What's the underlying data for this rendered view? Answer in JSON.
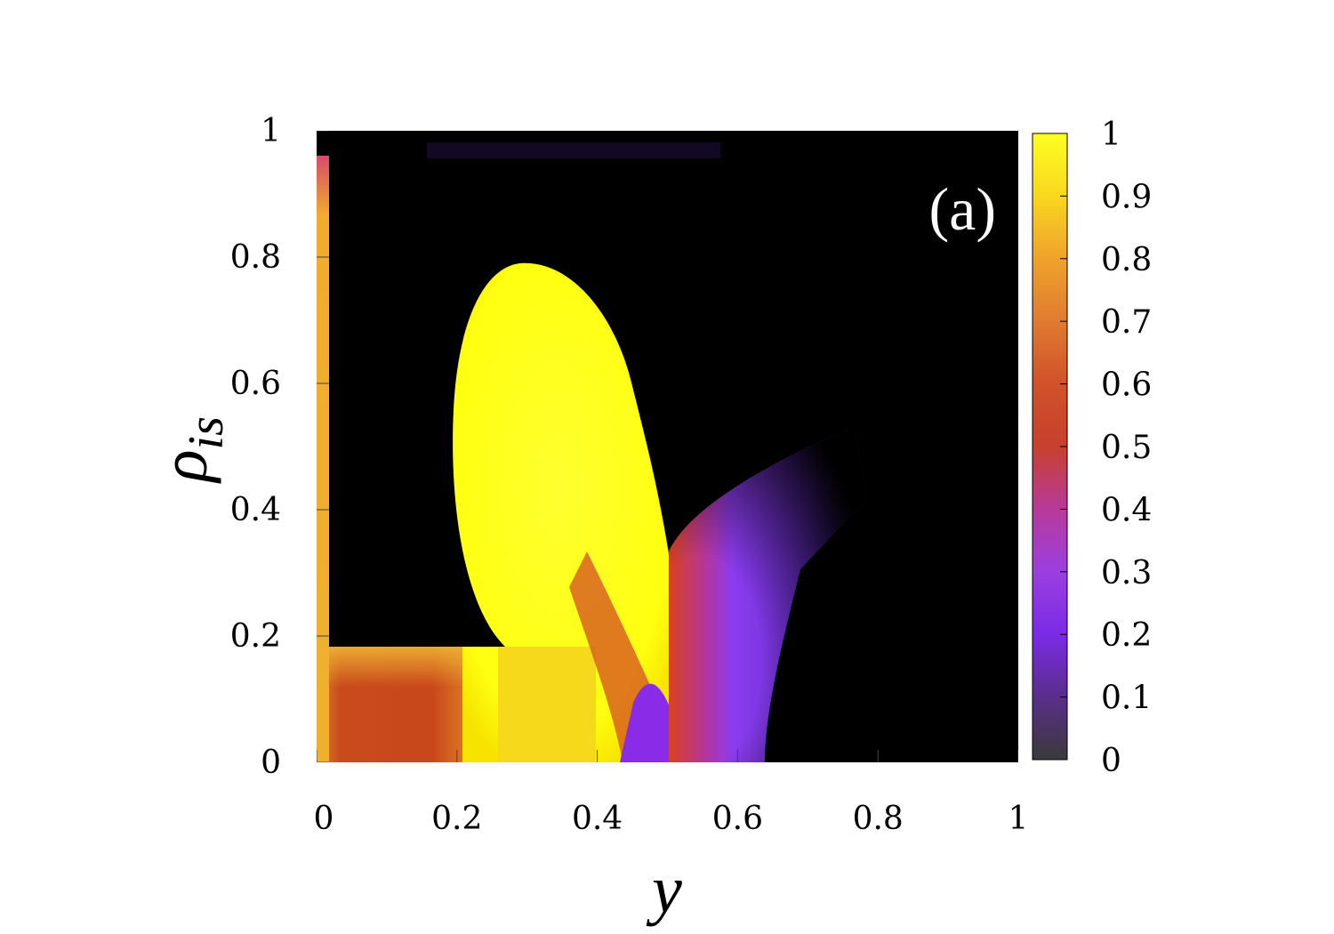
{
  "chart_data": {
    "type": "heatmap",
    "title": "",
    "panel_label": "(a)",
    "xlabel": "y",
    "ylabel": "ρ",
    "ylabel_subscript": "is",
    "xlim": [
      0,
      1
    ],
    "ylim": [
      0,
      1
    ],
    "x_ticks": [
      "0",
      "0.2",
      "0.4",
      "0.6",
      "0.8",
      "1"
    ],
    "x_tick_values": [
      0,
      0.2,
      0.4,
      0.6,
      0.8,
      1
    ],
    "y_ticks": [
      "0",
      "0.2",
      "0.4",
      "0.6",
      "0.8",
      "1"
    ],
    "y_tick_values": [
      0,
      0.2,
      0.4,
      0.6,
      0.8,
      1
    ],
    "background_value_color": "#000000",
    "colorbar": {
      "range": [
        0,
        1
      ],
      "ticks": [
        "0",
        "0.1",
        "0.2",
        "0.3",
        "0.4",
        "0.5",
        "0.6",
        "0.7",
        "0.8",
        "0.9",
        "1"
      ],
      "tick_values": [
        0,
        0.1,
        0.2,
        0.3,
        0.4,
        0.5,
        0.6,
        0.7,
        0.8,
        0.9,
        1
      ],
      "colors": [
        "#3a3a3a",
        "#5a2e8a",
        "#7b2be6",
        "#9b3fe0",
        "#b83a9a",
        "#c8402e",
        "#d0522a",
        "#e07a30",
        "#efa22c",
        "#f8d71e",
        "#ffff22"
      ]
    },
    "regions": [
      {
        "name": "left edge strip",
        "x_range": [
          0,
          0.02
        ],
        "y_range": [
          0,
          0.95
        ],
        "value": 0.85
      },
      {
        "name": "bottom band",
        "x_range": [
          0,
          0.27
        ],
        "y_range": [
          0,
          0.19
        ],
        "value_range": [
          0.55,
          0.9
        ]
      },
      {
        "name": "yellow lobe",
        "center": [
          0.3,
          0.48
        ],
        "x_range": [
          0.19,
          0.52
        ],
        "y_range": [
          0,
          0.8
        ],
        "value": 1.0
      },
      {
        "name": "purple wedge",
        "x_range": [
          0.44,
          0.52
        ],
        "y_range": [
          0,
          0.1
        ],
        "value": 0.3
      },
      {
        "name": "red-purple plume",
        "x_range": [
          0.52,
          0.75
        ],
        "y_range": [
          0,
          0.53
        ],
        "value_range": [
          0.1,
          0.5
        ]
      }
    ]
  }
}
